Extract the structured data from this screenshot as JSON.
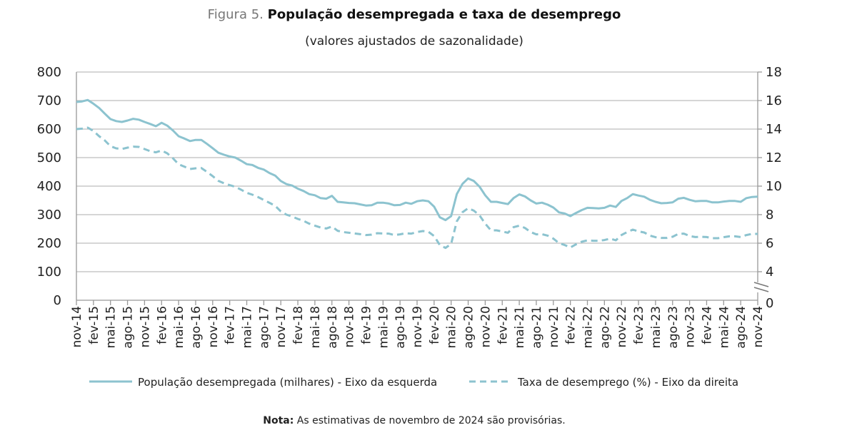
{
  "title": {
    "figure_label": "Figura 5.",
    "text": "População desempregada e taxa de desemprego"
  },
  "subtitle": "(valores ajustados de sazonalidade)",
  "note": {
    "label": "Nota:",
    "text": "As estimativas de novembro de 2024 são provisórias."
  },
  "colors": {
    "series": "#8cc3cf",
    "grid": "#bdbdbd",
    "axis": "#999999"
  },
  "chart_data": {
    "type": "line",
    "x_start": "nov-14",
    "x_end": "nov-24",
    "x_frequency": "monthly",
    "tick_labels": [
      "nov-14",
      "fev-15",
      "mai-15",
      "ago-15",
      "nov-15",
      "fev-16",
      "mai-16",
      "ago-16",
      "nov-16",
      "fev-17",
      "mai-17",
      "ago-17",
      "nov-17",
      "fev-18",
      "mai-18",
      "ago-18",
      "nov-18",
      "fev-19",
      "mai-19",
      "ago-19",
      "nov-19",
      "fev-20",
      "mai-20",
      "ago-20",
      "nov-20",
      "fev-21",
      "mai-21",
      "ago-21",
      "nov-21",
      "fev-22",
      "mai-22",
      "ago-22",
      "nov-22",
      "fev-23",
      "mai-23",
      "ago-23",
      "nov-23",
      "fev-24",
      "mai-24",
      "ago-24",
      "nov-24"
    ],
    "y_left": {
      "ylim": [
        0,
        800
      ],
      "ticks": [
        "0",
        "100",
        "200",
        "300",
        "400",
        "500",
        "600",
        "700",
        "800"
      ]
    },
    "y_right": {
      "ylim": [
        0,
        18
      ],
      "ticks": [
        "0",
        "4",
        "6",
        "8",
        "10",
        "12",
        "14",
        "16",
        "18"
      ],
      "axis_break": true
    },
    "grid": true,
    "legend_placement": "bottom",
    "series": [
      {
        "name": "População desempregada (milhares) - Eixo da esquerda",
        "axis": "left",
        "style": "solid",
        "values": [
          695,
          697,
          702,
          689,
          674,
          654,
          635,
          628,
          625,
          630,
          636,
          633,
          625,
          618,
          610,
          622,
          612,
          595,
          575,
          567,
          558,
          562,
          562,
          548,
          533,
          517,
          510,
          504,
          500,
          489,
          477,
          474,
          464,
          458,
          446,
          437,
          418,
          407,
          402,
          391,
          383,
          372,
          368,
          358,
          356,
          366,
          345,
          343,
          341,
          340,
          336,
          332,
          333,
          342,
          342,
          339,
          333,
          334,
          342,
          338,
          347,
          350,
          347,
          328,
          291,
          281,
          295,
          372,
          408,
          427,
          418,
          398,
          368,
          345,
          345,
          341,
          337,
          358,
          371,
          364,
          350,
          339,
          342,
          335,
          325,
          308,
          304,
          295,
          306,
          316,
          324,
          323,
          322,
          324,
          332,
          327,
          348,
          358,
          372,
          367,
          363,
          352,
          345,
          340,
          341,
          343,
          356,
          359,
          352,
          347,
          348,
          348,
          343,
          343,
          346,
          348,
          348,
          345,
          358,
          362,
          363
        ]
      },
      {
        "name": "Taxa de desemprego (%) - Eixo da direita",
        "axis": "right",
        "style": "dashed",
        "values": [
          14.0,
          14.03,
          14.1,
          13.87,
          13.5,
          13.2,
          12.8,
          12.65,
          12.6,
          12.7,
          12.77,
          12.75,
          12.6,
          12.45,
          12.37,
          12.5,
          12.3,
          11.95,
          11.53,
          11.37,
          11.2,
          11.25,
          11.27,
          11.0,
          10.7,
          10.37,
          10.2,
          10.07,
          9.95,
          9.75,
          9.53,
          9.4,
          9.23,
          9.03,
          8.83,
          8.62,
          8.23,
          8.0,
          7.87,
          7.7,
          7.57,
          7.37,
          7.23,
          7.1,
          7.03,
          7.17,
          6.87,
          6.78,
          6.73,
          6.68,
          6.63,
          6.57,
          6.6,
          6.7,
          6.68,
          6.67,
          6.57,
          6.62,
          6.7,
          6.67,
          6.78,
          6.85,
          6.8,
          6.5,
          5.87,
          5.67,
          5.95,
          7.53,
          8.17,
          8.45,
          8.28,
          7.95,
          7.37,
          6.9,
          6.9,
          6.82,
          6.73,
          7.12,
          7.23,
          7.07,
          6.78,
          6.62,
          6.63,
          6.53,
          6.32,
          6.0,
          5.87,
          5.7,
          5.92,
          6.1,
          6.2,
          6.17,
          6.17,
          6.22,
          6.32,
          6.2,
          6.57,
          6.78,
          6.95,
          6.83,
          6.75,
          6.53,
          6.42,
          6.37,
          6.37,
          6.45,
          6.65,
          6.67,
          6.5,
          6.43,
          6.45,
          6.43,
          6.35,
          6.35,
          6.42,
          6.48,
          6.48,
          6.43,
          6.57,
          6.65,
          6.65
        ]
      }
    ]
  }
}
